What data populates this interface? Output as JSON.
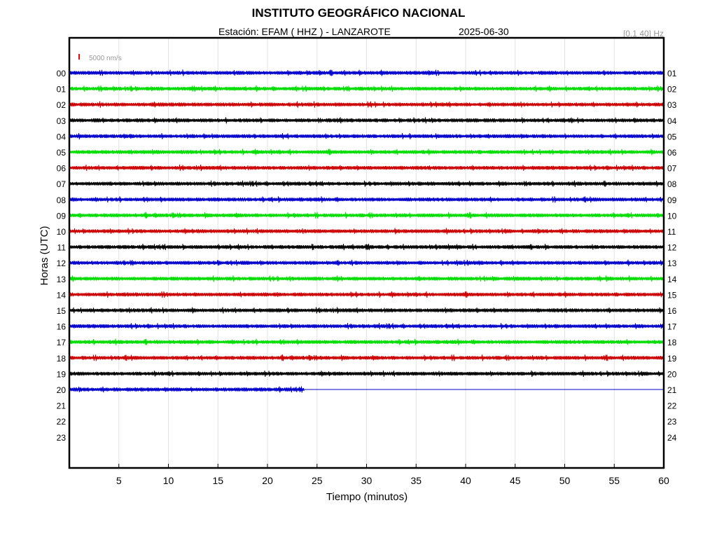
{
  "header": {
    "title": "INSTITUTO GEOGRÁFICO NACIONAL",
    "station_line": "Estación:  EFAM ( HHZ ) - LANZAROTE",
    "date": "2025-06-30",
    "filter": "[0.1 40] Hz"
  },
  "chart_data": {
    "type": "line",
    "title": "INSTITUTO GEOGRÁFICO NACIONAL",
    "xlabel": "Tiempo (minutos)",
    "ylabel": "Horas (UTC)",
    "xlim": [
      0,
      60
    ],
    "x_ticks": [
      "5",
      "10",
      "15",
      "20",
      "25",
      "30",
      "35",
      "40",
      "45",
      "50",
      "55",
      "60"
    ],
    "y_ticks_left": [
      "00",
      "01",
      "02",
      "03",
      "04",
      "05",
      "06",
      "07",
      "08",
      "09",
      "10",
      "11",
      "12",
      "13",
      "14",
      "15",
      "16",
      "17",
      "18",
      "19",
      "20",
      "21",
      "22",
      "23"
    ],
    "y_ticks_right": [
      "01",
      "02",
      "03",
      "04",
      "05",
      "06",
      "07",
      "08",
      "09",
      "10",
      "11",
      "12",
      "13",
      "14",
      "15",
      "16",
      "17",
      "18",
      "19",
      "20",
      "21",
      "22",
      "23",
      "24"
    ],
    "scale_label": "5000 nm/s",
    "grid": true,
    "trace_colors": [
      "#0000cc",
      "#00dd00",
      "#cc0000",
      "#000000"
    ],
    "scale_color": "#ff0000",
    "series": [
      {
        "hour": "00",
        "end_minute": 60
      },
      {
        "hour": "01",
        "end_minute": 60
      },
      {
        "hour": "02",
        "end_minute": 60
      },
      {
        "hour": "03",
        "end_minute": 60
      },
      {
        "hour": "04",
        "end_minute": 60
      },
      {
        "hour": "05",
        "end_minute": 60
      },
      {
        "hour": "06",
        "end_minute": 60
      },
      {
        "hour": "07",
        "end_minute": 60
      },
      {
        "hour": "08",
        "end_minute": 60
      },
      {
        "hour": "09",
        "end_minute": 60
      },
      {
        "hour": "10",
        "end_minute": 60
      },
      {
        "hour": "11",
        "end_minute": 60
      },
      {
        "hour": "12",
        "end_minute": 60
      },
      {
        "hour": "13",
        "end_minute": 60
      },
      {
        "hour": "14",
        "end_minute": 60
      },
      {
        "hour": "15",
        "end_minute": 60
      },
      {
        "hour": "16",
        "end_minute": 60
      },
      {
        "hour": "17",
        "end_minute": 60
      },
      {
        "hour": "18",
        "end_minute": 60
      },
      {
        "hour": "19",
        "end_minute": 60
      },
      {
        "hour": "20",
        "end_minute": 23.7,
        "flat_until": 60
      }
    ]
  }
}
